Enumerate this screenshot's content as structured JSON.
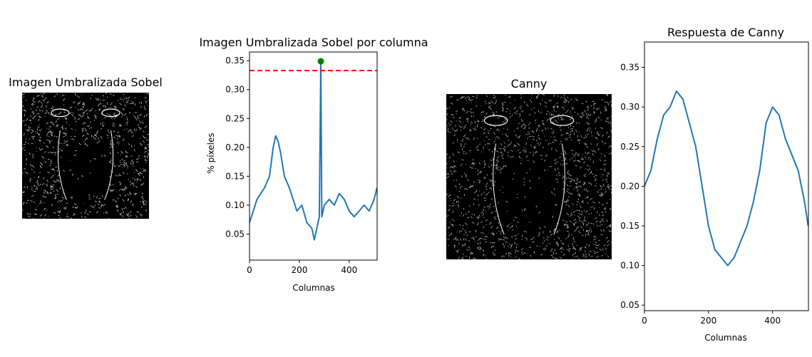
{
  "panels": {
    "sobel_image": {
      "title": "Imagen Umbralizada Sobel"
    },
    "canny_image": {
      "title": "Canny"
    }
  },
  "colors": {
    "line": "#1f77b4",
    "threshold": "#ff0000",
    "peak": "#008000",
    "edges": "#e8e8e8"
  },
  "chart_data": [
    {
      "type": "line",
      "title": "Imagen Umbralizada Sobel por columna",
      "xlabel": "Columnas",
      "ylabel": "% píxeles",
      "xlim": [
        0,
        512
      ],
      "ylim": [
        0.005,
        0.365
      ],
      "xticks": [
        0,
        200,
        400
      ],
      "yticks": [
        0.05,
        0.1,
        0.15,
        0.2,
        0.25,
        0.3,
        0.35
      ],
      "ytick_labels": [
        "0.05",
        "0.10",
        "0.15",
        "0.20",
        "0.25",
        "0.30",
        "0.35"
      ],
      "threshold": 0.333,
      "peak": {
        "x": 286,
        "y": 0.349
      },
      "series": [
        {
          "x": [
            0,
            30,
            60,
            80,
            95,
            105,
            115,
            125,
            140,
            160,
            175,
            190,
            210,
            230,
            250,
            260,
            270,
            280,
            286,
            290,
            300,
            320,
            340,
            360,
            380,
            400,
            420,
            440,
            460,
            480,
            500,
            511
          ],
          "y": [
            0.07,
            0.11,
            0.13,
            0.15,
            0.2,
            0.22,
            0.21,
            0.19,
            0.15,
            0.13,
            0.11,
            0.09,
            0.1,
            0.07,
            0.06,
            0.04,
            0.06,
            0.08,
            0.349,
            0.08,
            0.1,
            0.11,
            0.1,
            0.12,
            0.11,
            0.09,
            0.08,
            0.09,
            0.1,
            0.09,
            0.11,
            0.13
          ]
        }
      ]
    },
    {
      "type": "line",
      "title": "Respuesta de Canny",
      "xlabel": "Columnas",
      "ylabel": "",
      "xlim": [
        0,
        512
      ],
      "ylim": [
        0.043,
        0.382
      ],
      "xticks": [
        0,
        200,
        400
      ],
      "yticks": [
        0.05,
        0.1,
        0.15,
        0.2,
        0.25,
        0.3,
        0.35
      ],
      "ytick_labels": [
        "0.05",
        "0.10",
        "0.15",
        "0.20",
        "0.25",
        "0.30",
        "0.35"
      ],
      "series": [
        {
          "x": [
            0,
            20,
            40,
            60,
            80,
            100,
            120,
            140,
            160,
            180,
            200,
            220,
            240,
            260,
            280,
            300,
            320,
            340,
            360,
            380,
            400,
            420,
            440,
            460,
            480,
            500,
            511
          ],
          "y": [
            0.2,
            0.22,
            0.26,
            0.29,
            0.3,
            0.32,
            0.31,
            0.28,
            0.25,
            0.2,
            0.15,
            0.12,
            0.11,
            0.1,
            0.11,
            0.13,
            0.15,
            0.18,
            0.22,
            0.28,
            0.3,
            0.29,
            0.26,
            0.24,
            0.22,
            0.18,
            0.15
          ]
        }
      ]
    }
  ]
}
